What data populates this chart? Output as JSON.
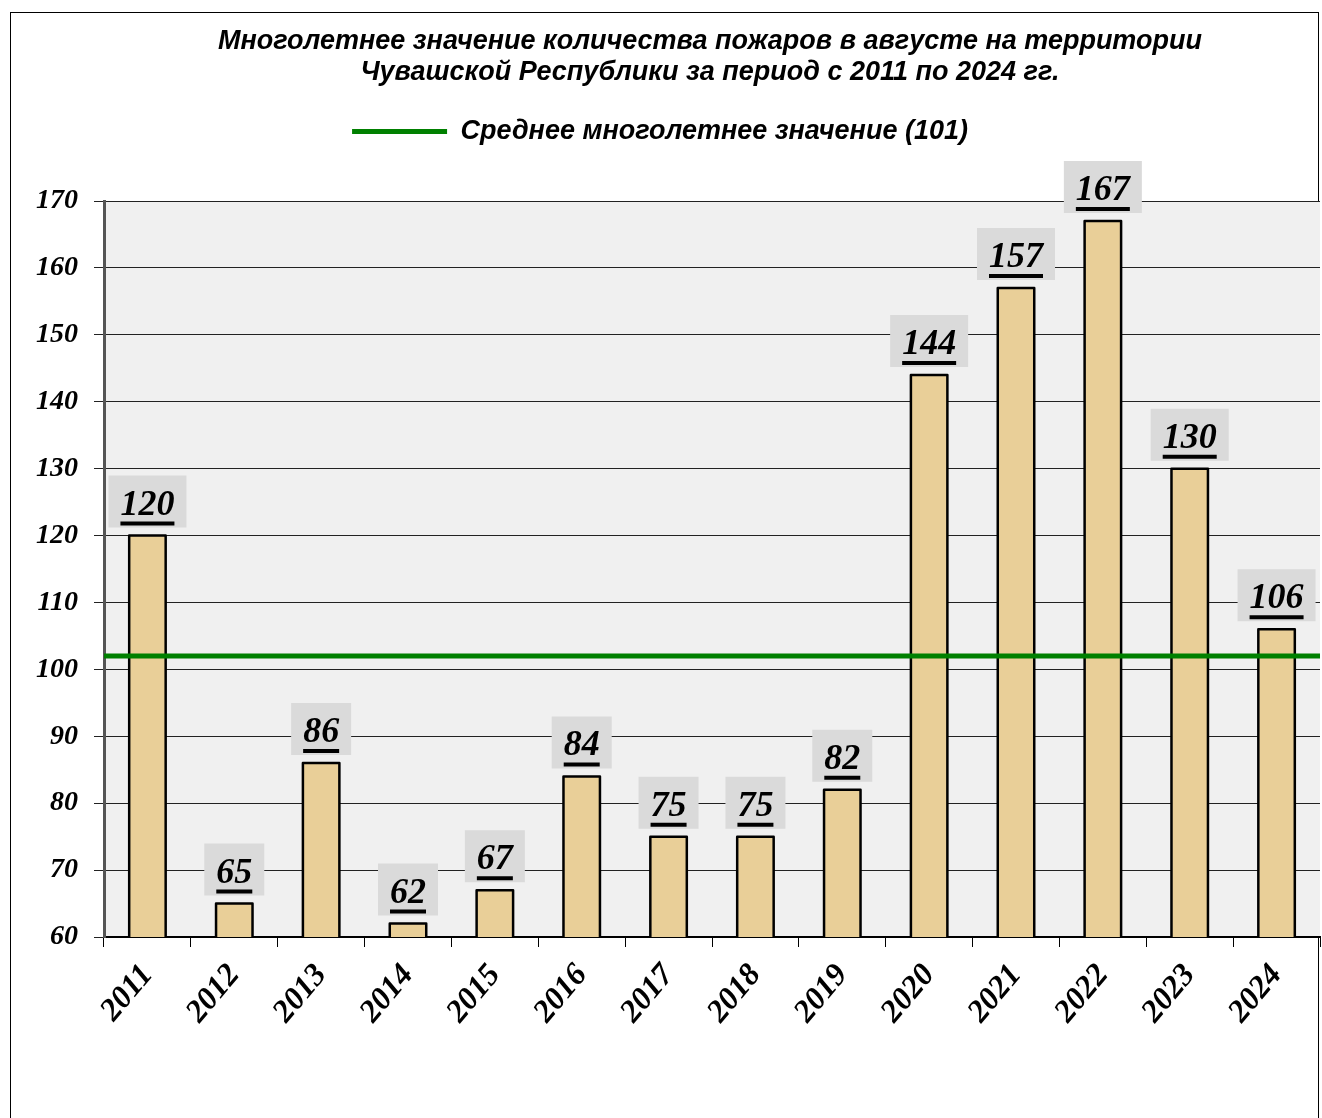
{
  "chart_data": {
    "type": "bar",
    "title": "Многолетнее значение количества пожаров в августе на территории Чувашской Республики за период с 2011 по 2024 гг.",
    "categories": [
      "2011",
      "2012",
      "2013",
      "2014",
      "2015",
      "2016",
      "2017",
      "2018",
      "2019",
      "2020",
      "2021",
      "2022",
      "2023",
      "2024"
    ],
    "values": [
      120,
      65,
      86,
      62,
      67,
      84,
      75,
      75,
      82,
      144,
      157,
      167,
      130,
      106
    ],
    "color": "#e9cf98",
    "ylim": [
      60,
      170
    ],
    "yticks": [
      60,
      70,
      80,
      90,
      100,
      110,
      120,
      130,
      140,
      150,
      160,
      170
    ],
    "grid": "y",
    "data_labels": true,
    "legend": "top",
    "ref_lines": [
      {
        "axis": "y",
        "value": 102,
        "label": "Среднее многолетнее значение (101)",
        "color": "#008000"
      }
    ]
  }
}
